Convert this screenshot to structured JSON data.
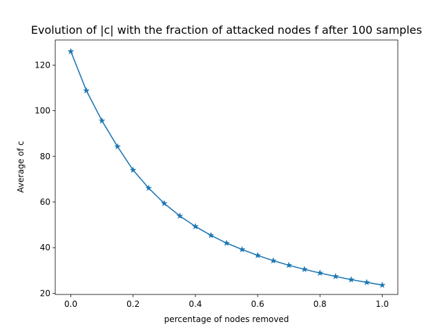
{
  "chart_data": {
    "type": "line",
    "title": "Evolution of |c| with the fraction of attacked nodes f after 100 samples",
    "xlabel": "percentage of nodes removed",
    "ylabel": "Average of c",
    "xlim": [
      -0.05,
      1.05
    ],
    "ylim": [
      19.5,
      131
    ],
    "xticks": [
      0.0,
      0.2,
      0.4,
      0.6,
      0.8,
      1.0
    ],
    "xtick_labels": [
      "0.0",
      "0.2",
      "0.4",
      "0.6",
      "0.8",
      "1.0"
    ],
    "yticks": [
      20,
      40,
      60,
      80,
      100,
      120
    ],
    "ytick_labels": [
      "20",
      "40",
      "60",
      "80",
      "100",
      "120"
    ],
    "grid": false,
    "marker": "star",
    "color": "#1f77b4",
    "series": [
      {
        "x": [
          0.0,
          0.05,
          0.1,
          0.15,
          0.2,
          0.25,
          0.3,
          0.35,
          0.4,
          0.45,
          0.5,
          0.55,
          0.6,
          0.65,
          0.7,
          0.75,
          0.8,
          0.85,
          0.9,
          0.95,
          1.0
        ],
        "values": [
          126.0,
          108.8,
          95.6,
          84.3,
          74.0,
          66.1,
          59.4,
          53.9,
          49.3,
          45.4,
          42.0,
          39.2,
          36.6,
          34.3,
          32.3,
          30.5,
          28.9,
          27.4,
          26.0,
          24.8,
          23.6
        ]
      }
    ]
  }
}
